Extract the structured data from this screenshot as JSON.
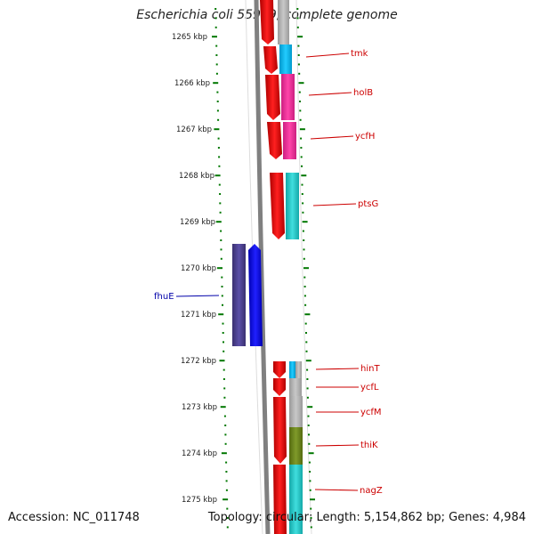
{
  "title": "Escherichia coli 55989, complete genome",
  "accession": "Accession: NC_011748",
  "topology": "Topology: circular; Length: 5,154,862 bp; Genes: 4,984",
  "ruler": {
    "ticks": [
      "1265 kbp",
      "1266 kbp",
      "1267 kbp",
      "1268 kbp",
      "1269 kbp",
      "1270 kbp",
      "1271 kbp",
      "1272 kbp",
      "1273 kbp",
      "1274 kbp",
      "1275 kbp"
    ]
  },
  "genes": [
    {
      "label": "tmk",
      "color": "#cc0000"
    },
    {
      "label": "holB",
      "color": "#cc0000"
    },
    {
      "label": "ycfH",
      "color": "#cc0000"
    },
    {
      "label": "ptsG",
      "color": "#cc0000"
    },
    {
      "label": "fhuE",
      "color": "#0000aa"
    },
    {
      "label": "hinT",
      "color": "#cc0000"
    },
    {
      "label": "ycfL",
      "color": "#cc0000"
    },
    {
      "label": "ycfM",
      "color": "#cc0000"
    },
    {
      "label": "thiK",
      "color": "#cc0000"
    },
    {
      "label": "nagZ",
      "color": "#cc0000"
    }
  ],
  "colors": {
    "forward_strand": "#ff0000",
    "reverse_strand": "#0000ff",
    "reverse_category": "#4b3f8f",
    "backbone": "#808080",
    "tick": "#007700"
  }
}
